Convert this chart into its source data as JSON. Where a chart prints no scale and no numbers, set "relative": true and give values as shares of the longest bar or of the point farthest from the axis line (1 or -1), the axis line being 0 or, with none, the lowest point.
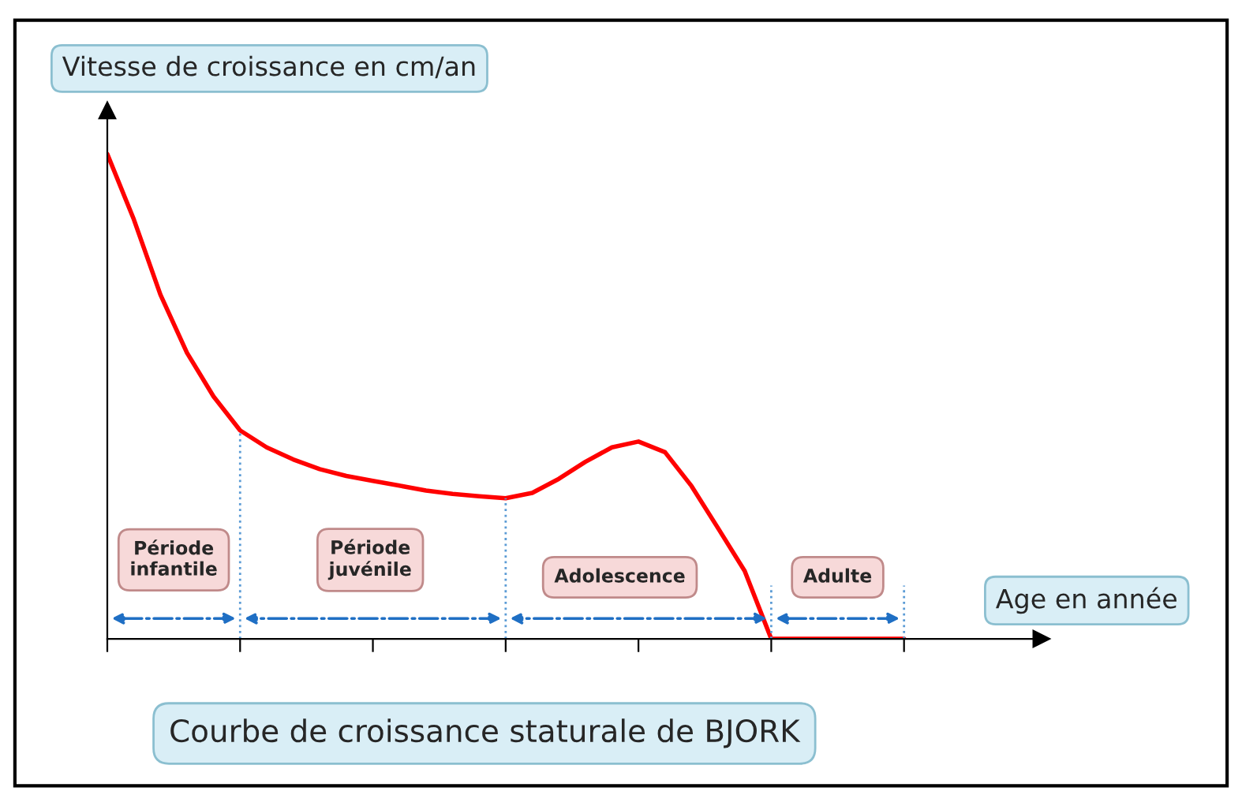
{
  "chart_data": {
    "type": "line",
    "relative": true,
    "title": "Courbe de croissance staturale de BJORK",
    "xlabel": "Age en année",
    "ylabel": "Vitesse de croissance en cm/an",
    "categories": [
      null,
      null,
      null,
      null,
      null,
      null,
      null,
      null,
      null,
      null,
      null,
      null,
      null,
      null,
      null,
      null,
      null,
      null,
      null,
      null,
      null,
      null,
      null,
      null,
      null,
      null,
      null,
      null,
      null,
      null,
      null
    ],
    "series": [
      {
        "color": "#ff0000",
        "values": [
          1,
          0.865,
          0.71,
          0.59,
          0.5,
          0.43,
          0.395,
          0.37,
          0.35,
          0.336,
          0.326,
          0.316,
          0.306,
          0.299,
          0.294,
          0.29,
          0.301,
          0.33,
          0.365,
          0.395,
          0.407,
          0.385,
          0.315,
          0.228,
          0.14,
          0,
          0,
          0,
          0,
          0,
          0
        ]
      }
    ],
    "annotations": [
      "Période\ninfantile",
      "Période\njuvénile",
      "Adolescence",
      "Adulte"
    ],
    "grid": false,
    "legend": false,
    "marker": "none",
    "line_style": "solid"
  }
}
